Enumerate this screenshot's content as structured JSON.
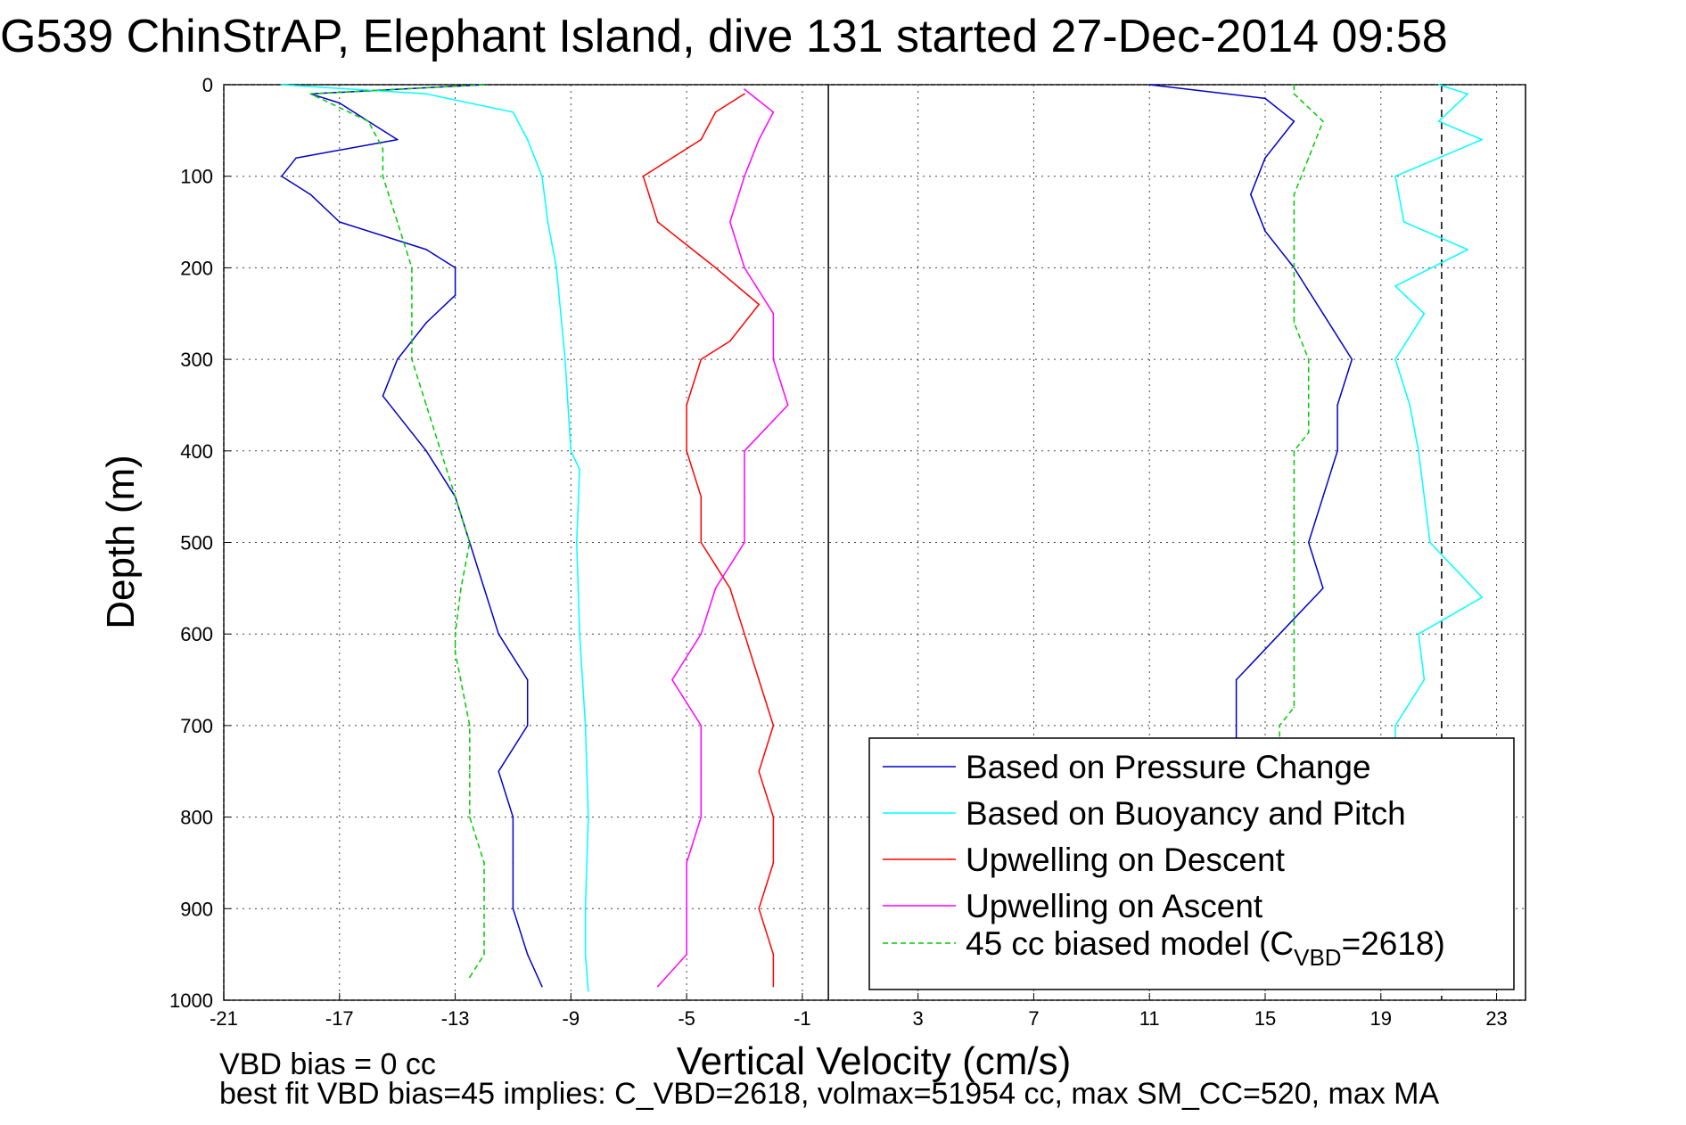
{
  "title": "G539 ChinStrAP, Elephant Island, dive 131 started 27-Dec-2014 09:58",
  "footer": {
    "line1": "VBD bias = 0 cc",
    "line2": "best fit VBD bias=45 implies: C_VBD=2618, volmax=51954 cc, max SM_CC=520, max MA"
  },
  "chart_data": {
    "type": "line",
    "title": "G539 ChinStrAP, Elephant Island, dive 131 started 27-Dec-2014 09:58",
    "xlabel": "Vertical Velocity (cm/s)",
    "ylabel": "Depth (m)",
    "xlim": [
      -21,
      24
    ],
    "ylim": [
      1000,
      0
    ],
    "y_reversed": true,
    "xticks": [
      -21,
      -17,
      -13,
      -9,
      -5,
      -1,
      3,
      7,
      11,
      15,
      19,
      23
    ],
    "yticks": [
      0,
      100,
      200,
      300,
      400,
      500,
      600,
      700,
      800,
      900,
      1000
    ],
    "grid": true,
    "legend_position": "bottom-right",
    "reference_lines": [
      {
        "x": -0.1,
        "style": "solid",
        "color": "#000000"
      },
      {
        "x": 21.1,
        "style": "dashed",
        "color": "#000000"
      }
    ],
    "series": [
      {
        "name": "Based on Pressure Change",
        "color": "#0000CC",
        "style": "solid",
        "branch": "descent",
        "depth": [
          0,
          10,
          20,
          40,
          60,
          80,
          100,
          120,
          150,
          180,
          200,
          230,
          260,
          300,
          340,
          380,
          400,
          450,
          500,
          550,
          600,
          650,
          700,
          750,
          800,
          850,
          900,
          950,
          985
        ],
        "velocity": [
          -12,
          -18,
          -17,
          -16,
          -15,
          -18.5,
          -19,
          -18,
          -17,
          -14,
          -13,
          -13,
          -14,
          -15,
          -15.5,
          -14.5,
          -14,
          -13,
          -12.5,
          -12,
          -11.5,
          -10.5,
          -10.5,
          -11.5,
          -11,
          -11,
          -11,
          -10.5,
          -10
        ]
      },
      {
        "name": "Based on Pressure Change (ascent)",
        "color": "#0000CC",
        "style": "solid",
        "branch": "ascent",
        "depth": [
          0,
          15,
          40,
          80,
          120,
          160,
          200,
          250,
          300,
          350,
          400,
          450,
          500,
          550,
          600,
          650,
          700,
          720
        ],
        "velocity": [
          11,
          15,
          16,
          15,
          14.5,
          15,
          16,
          17,
          18,
          17.5,
          17.5,
          17,
          16.5,
          17,
          15.5,
          14,
          14,
          14
        ]
      },
      {
        "name": "Based on Buoyancy and Pitch",
        "color": "#00FFFF",
        "style": "solid",
        "branch": "descent",
        "depth": [
          0,
          10,
          30,
          60,
          100,
          150,
          200,
          300,
          400,
          420,
          500,
          600,
          700,
          800,
          900,
          950,
          990
        ],
        "velocity": [
          -19,
          -14,
          -11,
          -10.5,
          -10,
          -9.8,
          -9.5,
          -9.2,
          -9.0,
          -8.7,
          -8.8,
          -8.7,
          -8.5,
          -8.4,
          -8.5,
          -8.5,
          -8.4
        ]
      },
      {
        "name": "Based on Buoyancy and Pitch (ascent)",
        "color": "#00FFFF",
        "style": "solid",
        "branch": "ascent",
        "depth": [
          0,
          10,
          40,
          60,
          100,
          150,
          180,
          220,
          250,
          300,
          350,
          400,
          450,
          500,
          560,
          600,
          650,
          700,
          720
        ],
        "velocity": [
          21,
          22,
          21,
          22.5,
          19.5,
          19.8,
          22,
          19.5,
          20.5,
          19.5,
          20,
          20.3,
          20.5,
          20.7,
          22.5,
          20.3,
          20.5,
          19.5,
          19.5
        ]
      },
      {
        "name": "Upwelling on Descent",
        "color": "#FF0000",
        "style": "solid",
        "depth": [
          10,
          30,
          60,
          100,
          150,
          200,
          240,
          280,
          300,
          350,
          400,
          450,
          500,
          550,
          600,
          650,
          700,
          750,
          800,
          850,
          900,
          950,
          985
        ],
        "velocity": [
          -3,
          -4,
          -4.5,
          -6.5,
          -6,
          -4,
          -2.5,
          -3.5,
          -4.5,
          -5,
          -5,
          -4.5,
          -4.5,
          -3.5,
          -3,
          -2.5,
          -2,
          -2.5,
          -2,
          -2,
          -2.5,
          -2,
          -2
        ]
      },
      {
        "name": "Upwelling on Ascent",
        "color": "#FF00FF",
        "style": "solid",
        "depth": [
          5,
          30,
          60,
          100,
          150,
          200,
          250,
          300,
          350,
          400,
          450,
          500,
          550,
          600,
          650,
          700,
          750,
          800,
          850,
          900,
          950,
          985
        ],
        "velocity": [
          -3,
          -2,
          -2.5,
          -3,
          -3.5,
          -3,
          -2,
          -2,
          -1.5,
          -3,
          -3,
          -3,
          -4,
          -4.5,
          -5.5,
          -4.5,
          -4.5,
          -4.5,
          -5,
          -5,
          -5,
          -6
        ]
      },
      {
        "name": "45 cc biased model (C_VBD=2618)",
        "color": "#00CC00",
        "style": "dashed",
        "branch": "descent",
        "depth": [
          0,
          10,
          40,
          70,
          100,
          150,
          200,
          250,
          300,
          350,
          400,
          450,
          500,
          550,
          600,
          620,
          700,
          750,
          800,
          850,
          900,
          950,
          975
        ],
        "velocity": [
          -12,
          -18,
          -16,
          -15.5,
          -15.5,
          -15,
          -14.5,
          -14.5,
          -14.5,
          -14,
          -13.5,
          -13,
          -12.5,
          -12.8,
          -13,
          -13,
          -12.5,
          -12.5,
          -12.5,
          -12,
          -12,
          -12,
          -12.5
        ]
      },
      {
        "name": "45 cc biased model (C_VBD=2618) (ascent)",
        "color": "#00CC00",
        "style": "dashed",
        "branch": "ascent",
        "depth": [
          0,
          10,
          40,
          80,
          120,
          150,
          200,
          260,
          300,
          350,
          380,
          400,
          450,
          500,
          560,
          600,
          640,
          680,
          700,
          720
        ],
        "velocity": [
          16,
          16,
          17,
          16.5,
          16,
          16,
          16,
          16,
          16.5,
          16.5,
          16.5,
          16,
          16,
          16,
          16,
          16,
          16,
          16,
          15.5,
          15.5
        ]
      }
    ],
    "legend": [
      {
        "label": "Based on Pressure Change",
        "color": "#0000CC",
        "style": "solid"
      },
      {
        "label": "Based on Buoyancy and Pitch",
        "color": "#00FFFF",
        "style": "solid"
      },
      {
        "label": "Upwelling on Descent",
        "color": "#FF0000",
        "style": "solid"
      },
      {
        "label": "Upwelling on Ascent",
        "color": "#FF00FF",
        "style": "solid"
      },
      {
        "label": "45 cc biased model (C",
        "sub": "VBD",
        "suffix": "=2618)",
        "color": "#00CC00",
        "style": "dashed"
      }
    ]
  }
}
